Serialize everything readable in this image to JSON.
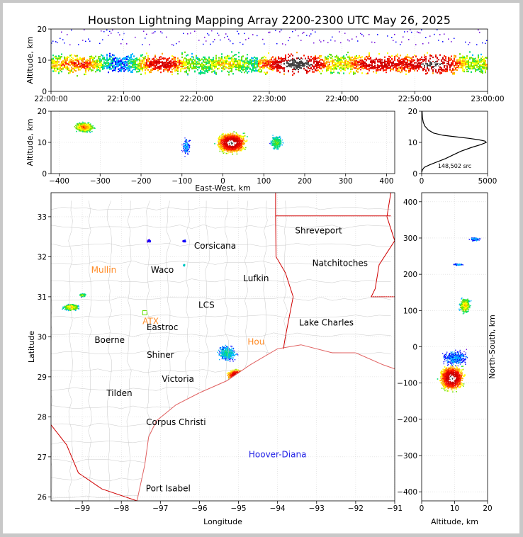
{
  "title": "Houston Lightning Mapping Array 2200-2300 UTC May 26, 2025",
  "chart_data": [
    {
      "panel": "time-altitude",
      "type": "scatter",
      "ylabel": "Altitude, km",
      "ylim": [
        0,
        20
      ],
      "y_ticks": [
        0,
        10,
        20
      ],
      "x_tick_labels": [
        "22:00:00",
        "22:10:00",
        "22:20:00",
        "22:30:00",
        "22:40:00",
        "22:50:00",
        "23:00:00"
      ],
      "grid": true
    },
    {
      "panel": "east-west-altitude",
      "type": "scatter",
      "xlabel": "East-West, km",
      "ylabel": "Altitude, km",
      "xlim": [
        -420,
        420
      ],
      "ylim": [
        0,
        20
      ],
      "x_ticks": [
        -400,
        -300,
        -200,
        -100,
        0,
        100,
        200,
        300,
        400
      ],
      "y_ticks": [
        0,
        10,
        20
      ],
      "grid": true
    },
    {
      "panel": "altitude-histogram",
      "type": "line",
      "xlim": [
        0,
        5000
      ],
      "ylim": [
        0,
        20
      ],
      "x_ticks": [
        0,
        5000
      ],
      "y_ticks": [
        0,
        10,
        20
      ],
      "source_count_label": "148,502 src",
      "points": [
        [
          0,
          0.4
        ],
        [
          60,
          1.2
        ],
        [
          200,
          2.0
        ],
        [
          600,
          2.8
        ],
        [
          1200,
          3.8
        ],
        [
          1800,
          4.8
        ],
        [
          2400,
          6.0
        ],
        [
          3000,
          7.2
        ],
        [
          3800,
          8.4
        ],
        [
          4500,
          9.3
        ],
        [
          4900,
          10.0
        ],
        [
          4800,
          10.4
        ],
        [
          4400,
          10.8
        ],
        [
          3600,
          11.3
        ],
        [
          2600,
          11.8
        ],
        [
          1600,
          12.3
        ],
        [
          900,
          13.0
        ],
        [
          500,
          14.0
        ],
        [
          250,
          15.2
        ],
        [
          120,
          16.5
        ],
        [
          60,
          18.0
        ],
        [
          30,
          20.0
        ]
      ]
    },
    {
      "panel": "map",
      "type": "scatter",
      "xlabel": "Longitude",
      "ylabel": "Latitude",
      "xlim": [
        -99.8,
        -91.0
      ],
      "ylim": [
        25.9,
        33.6
      ],
      "x_ticks": [
        -99,
        -98,
        -97,
        -96,
        -95,
        -94,
        -93,
        -92,
        -91
      ],
      "y_ticks": [
        26,
        27,
        28,
        29,
        30,
        31,
        32,
        33
      ],
      "grid": true,
      "labels": [
        {
          "text": "Shreveport",
          "lon": -92.95,
          "lat": 32.58,
          "color": "#000000"
        },
        {
          "text": "Corsicana",
          "lon": -95.6,
          "lat": 32.2,
          "color": "#000000"
        },
        {
          "text": "Natchitoches",
          "lon": -92.4,
          "lat": 31.77,
          "color": "#000000"
        },
        {
          "text": "Mullin",
          "lon": -98.45,
          "lat": 31.6,
          "color": "#ff8c28"
        },
        {
          "text": "Waco",
          "lon": -96.95,
          "lat": 31.6,
          "color": "#000000"
        },
        {
          "text": "Lufkin",
          "lon": -94.55,
          "lat": 31.39,
          "color": "#000000"
        },
        {
          "text": "LCS",
          "lon": -95.82,
          "lat": 30.72,
          "color": "#000000"
        },
        {
          "text": "ATX",
          "lon": -97.25,
          "lat": 30.32,
          "color": "#ff8c28"
        },
        {
          "text": "Lake Charles",
          "lon": -92.75,
          "lat": 30.28,
          "color": "#000000"
        },
        {
          "text": "Eastroc",
          "lon": -96.95,
          "lat": 30.17,
          "color": "#000000"
        },
        {
          "text": "Boerne",
          "lon": -98.3,
          "lat": 29.85,
          "color": "#000000"
        },
        {
          "text": "Hou",
          "lon": -94.55,
          "lat": 29.8,
          "color": "#ff8c28"
        },
        {
          "text": "Shiner",
          "lon": -97.0,
          "lat": 29.48,
          "color": "#000000"
        },
        {
          "text": "Victoria",
          "lon": -96.55,
          "lat": 28.87,
          "color": "#000000"
        },
        {
          "text": "Tilden",
          "lon": -98.05,
          "lat": 28.52,
          "color": "#000000"
        },
        {
          "text": "Corpus Christi",
          "lon": -96.6,
          "lat": 27.79,
          "color": "#000000"
        },
        {
          "text": "Hoover-Diana",
          "lon": -94.0,
          "lat": 26.99,
          "color": "#1e1ee6"
        },
        {
          "text": "Port Isabel",
          "lon": -96.8,
          "lat": 26.14,
          "color": "#000000"
        }
      ]
    },
    {
      "panel": "altitude-north-south",
      "type": "scatter",
      "xlabel": "Altitude, km",
      "ylabel": "North-South, km",
      "xlim": [
        0,
        20
      ],
      "ylim": [
        -425,
        425
      ],
      "x_ticks": [
        0,
        10,
        20
      ],
      "y_ticks": [
        -400,
        -300,
        -200,
        -100,
        0,
        100,
        200,
        300,
        400
      ],
      "grid": true
    }
  ],
  "colors": {
    "density_scale": [
      "#6a00d8",
      "#0000ff",
      "#00b4ff",
      "#00e070",
      "#70e000",
      "#ffff00",
      "#ffa000",
      "#ff2000",
      "#e00000",
      "#c80000",
      "#ffffff",
      "#404040"
    ],
    "county_lines": "#c8c8c8",
    "state_border": "#d00000",
    "coastline": "#e06060"
  },
  "icons": {
    "station_marker": "square-outline-icon"
  }
}
